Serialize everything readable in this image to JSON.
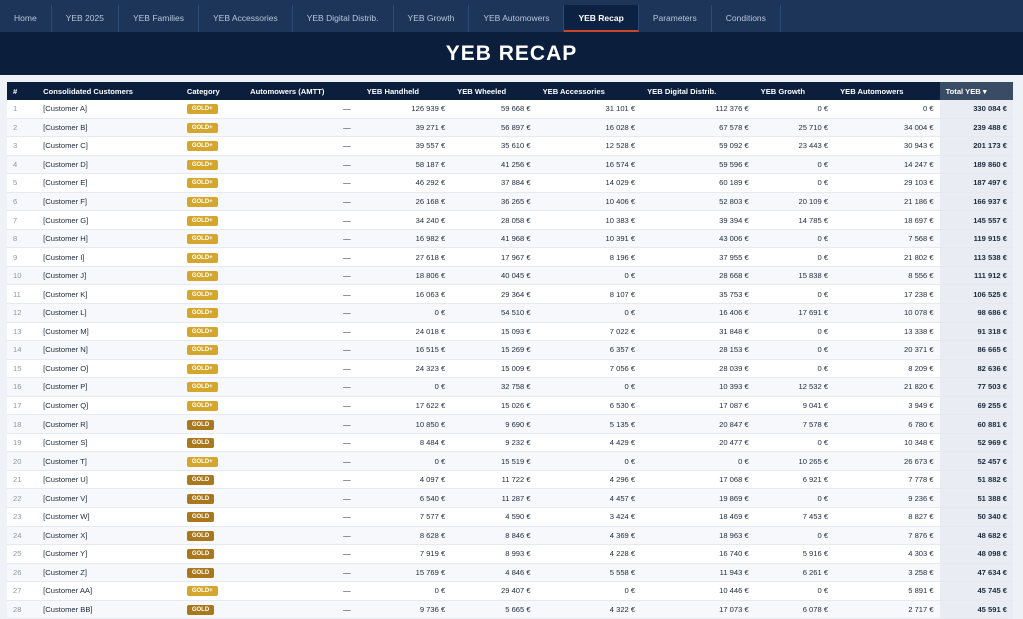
{
  "nav": {
    "tabs": [
      {
        "label": "Home",
        "active": false
      },
      {
        "label": "YEB 2025",
        "active": false
      },
      {
        "label": "YEB Families",
        "active": false
      },
      {
        "label": "YEB Accessories",
        "active": false
      },
      {
        "label": "YEB Digital Distrib.",
        "active": false
      },
      {
        "label": "YEB Growth",
        "active": false
      },
      {
        "label": "YEB Automowers",
        "active": false
      },
      {
        "label": "YEB Recap",
        "active": true
      },
      {
        "label": "Parameters",
        "active": false
      },
      {
        "label": "Conditions",
        "active": false
      }
    ]
  },
  "page": {
    "title": "YEB RECAP"
  },
  "colors": {
    "navy": "#0b1f3d",
    "gold_plus": "#d4a72c",
    "gold": "#a9781d",
    "active_tab_accent": "#c9462b"
  },
  "table": {
    "columns": [
      "#",
      "Consolidated Customers",
      "Category",
      "Automowers (AMTT)",
      "YEB Handheld",
      "YEB Wheeled",
      "YEB Accessories",
      "YEB Digital Distrib.",
      "YEB Growth",
      "YEB Automowers",
      "Total YEB ▾"
    ],
    "rows": [
      {
        "idx": "1",
        "customer": "[Customer A]",
        "category": "GOLD+",
        "amtt": "—",
        "handheld": "126 939 €",
        "wheeled": "59 668 €",
        "accessories": "31 101 €",
        "digital": "112 376 €",
        "growth": "0 €",
        "automowers": "0 €",
        "total": "330 084 €"
      },
      {
        "idx": "2",
        "customer": "[Customer B]",
        "category": "GOLD+",
        "amtt": "—",
        "handheld": "39 271 €",
        "wheeled": "56 897 €",
        "accessories": "16 028 €",
        "digital": "67 578 €",
        "growth": "25 710 €",
        "automowers": "34 004 €",
        "total": "239 488 €"
      },
      {
        "idx": "3",
        "customer": "[Customer C]",
        "category": "GOLD+",
        "amtt": "—",
        "handheld": "39 557 €",
        "wheeled": "35 610 €",
        "accessories": "12 528 €",
        "digital": "59 092 €",
        "growth": "23 443 €",
        "automowers": "30 943 €",
        "total": "201 173 €"
      },
      {
        "idx": "4",
        "customer": "[Customer D]",
        "category": "GOLD+",
        "amtt": "—",
        "handheld": "58 187 €",
        "wheeled": "41 256 €",
        "accessories": "16 574 €",
        "digital": "59 596 €",
        "growth": "0 €",
        "automowers": "14 247 €",
        "total": "189 860 €"
      },
      {
        "idx": "5",
        "customer": "[Customer E]",
        "category": "GOLD+",
        "amtt": "—",
        "handheld": "46 292 €",
        "wheeled": "37 884 €",
        "accessories": "14 029 €",
        "digital": "60 189 €",
        "growth": "0 €",
        "automowers": "29 103 €",
        "total": "187 497 €"
      },
      {
        "idx": "6",
        "customer": "[Customer F]",
        "category": "GOLD+",
        "amtt": "—",
        "handheld": "26 168 €",
        "wheeled": "36 265 €",
        "accessories": "10 406 €",
        "digital": "52 803 €",
        "growth": "20 109 €",
        "automowers": "21 186 €",
        "total": "166 937 €"
      },
      {
        "idx": "7",
        "customer": "[Customer G]",
        "category": "GOLD+",
        "amtt": "—",
        "handheld": "34 240 €",
        "wheeled": "28 058 €",
        "accessories": "10 383 €",
        "digital": "39 394 €",
        "growth": "14 785 €",
        "automowers": "18 697 €",
        "total": "145 557 €"
      },
      {
        "idx": "8",
        "customer": "[Customer H]",
        "category": "GOLD+",
        "amtt": "—",
        "handheld": "16 982 €",
        "wheeled": "41 968 €",
        "accessories": "10 391 €",
        "digital": "43 006 €",
        "growth": "0 €",
        "automowers": "7 568 €",
        "total": "119 915 €"
      },
      {
        "idx": "9",
        "customer": "[Customer I]",
        "category": "GOLD+",
        "amtt": "—",
        "handheld": "27 618 €",
        "wheeled": "17 967 €",
        "accessories": "8 196 €",
        "digital": "37 955 €",
        "growth": "0 €",
        "automowers": "21 802 €",
        "total": "113 538 €"
      },
      {
        "idx": "10",
        "customer": "[Customer J]",
        "category": "GOLD+",
        "amtt": "—",
        "handheld": "18 806 €",
        "wheeled": "40 045 €",
        "accessories": "0 €",
        "digital": "28 668 €",
        "growth": "15 838 €",
        "automowers": "8 556 €",
        "total": "111 912 €"
      },
      {
        "idx": "11",
        "customer": "[Customer K]",
        "category": "GOLD+",
        "amtt": "—",
        "handheld": "16 063 €",
        "wheeled": "29 364 €",
        "accessories": "8 107 €",
        "digital": "35 753 €",
        "growth": "0 €",
        "automowers": "17 238 €",
        "total": "106 525 €"
      },
      {
        "idx": "12",
        "customer": "[Customer L]",
        "category": "GOLD+",
        "amtt": "—",
        "handheld": "0 €",
        "wheeled": "54 510 €",
        "accessories": "0 €",
        "digital": "16 406 €",
        "growth": "17 691 €",
        "automowers": "10 078 €",
        "total": "98 686 €"
      },
      {
        "idx": "13",
        "customer": "[Customer M]",
        "category": "GOLD+",
        "amtt": "—",
        "handheld": "24 018 €",
        "wheeled": "15 093 €",
        "accessories": "7 022 €",
        "digital": "31 848 €",
        "growth": "0 €",
        "automowers": "13 338 €",
        "total": "91 318 €"
      },
      {
        "idx": "14",
        "customer": "[Customer N]",
        "category": "GOLD+",
        "amtt": "—",
        "handheld": "16 515 €",
        "wheeled": "15 269 €",
        "accessories": "6 357 €",
        "digital": "28 153 €",
        "growth": "0 €",
        "automowers": "20 371 €",
        "total": "86 665 €"
      },
      {
        "idx": "15",
        "customer": "[Customer O]",
        "category": "GOLD+",
        "amtt": "—",
        "handheld": "24 323 €",
        "wheeled": "15 009 €",
        "accessories": "7 056 €",
        "digital": "28 039 €",
        "growth": "0 €",
        "automowers": "8 209 €",
        "total": "82 636 €"
      },
      {
        "idx": "16",
        "customer": "[Customer P]",
        "category": "GOLD+",
        "amtt": "—",
        "handheld": "0 €",
        "wheeled": "32 758 €",
        "accessories": "0 €",
        "digital": "10 393 €",
        "growth": "12 532 €",
        "automowers": "21 820 €",
        "total": "77 503 €"
      },
      {
        "idx": "17",
        "customer": "[Customer Q]",
        "category": "GOLD+",
        "amtt": "—",
        "handheld": "17 622 €",
        "wheeled": "15 026 €",
        "accessories": "6 530 €",
        "digital": "17 087 €",
        "growth": "9 041 €",
        "automowers": "3 949 €",
        "total": "69 255 €"
      },
      {
        "idx": "18",
        "customer": "[Customer R]",
        "category": "GOLD",
        "amtt": "—",
        "handheld": "10 850 €",
        "wheeled": "9 690 €",
        "accessories": "5 135 €",
        "digital": "20 847 €",
        "growth": "7 578 €",
        "automowers": "6 780 €",
        "total": "60 881 €"
      },
      {
        "idx": "19",
        "customer": "[Customer S]",
        "category": "GOLD",
        "amtt": "—",
        "handheld": "8 484 €",
        "wheeled": "9 232 €",
        "accessories": "4 429 €",
        "digital": "20 477 €",
        "growth": "0 €",
        "automowers": "10 348 €",
        "total": "52 969 €"
      },
      {
        "idx": "20",
        "customer": "[Customer T]",
        "category": "GOLD+",
        "amtt": "—",
        "handheld": "0 €",
        "wheeled": "15 519 €",
        "accessories": "0 €",
        "digital": "0 €",
        "growth": "10 265 €",
        "automowers": "26 673 €",
        "total": "52 457 €"
      },
      {
        "idx": "21",
        "customer": "[Customer U]",
        "category": "GOLD",
        "amtt": "—",
        "handheld": "4 097 €",
        "wheeled": "11 722 €",
        "accessories": "4 296 €",
        "digital": "17 068 €",
        "growth": "6 921 €",
        "automowers": "7 778 €",
        "total": "51 882 €"
      },
      {
        "idx": "22",
        "customer": "[Customer V]",
        "category": "GOLD",
        "amtt": "—",
        "handheld": "6 540 €",
        "wheeled": "11 287 €",
        "accessories": "4 457 €",
        "digital": "19 869 €",
        "growth": "0 €",
        "automowers": "9 236 €",
        "total": "51 388 €"
      },
      {
        "idx": "23",
        "customer": "[Customer W]",
        "category": "GOLD",
        "amtt": "—",
        "handheld": "7 577 €",
        "wheeled": "4 590 €",
        "accessories": "3 424 €",
        "digital": "18 469 €",
        "growth": "7 453 €",
        "automowers": "8 827 €",
        "total": "50 340 €"
      },
      {
        "idx": "24",
        "customer": "[Customer X]",
        "category": "GOLD",
        "amtt": "—",
        "handheld": "8 628 €",
        "wheeled": "8 846 €",
        "accessories": "4 369 €",
        "digital": "18 963 €",
        "growth": "0 €",
        "automowers": "7 876 €",
        "total": "48 682 €"
      },
      {
        "idx": "25",
        "customer": "[Customer Y]",
        "category": "GOLD",
        "amtt": "—",
        "handheld": "7 919 €",
        "wheeled": "8 993 €",
        "accessories": "4 228 €",
        "digital": "16 740 €",
        "growth": "5 916 €",
        "automowers": "4 303 €",
        "total": "48 098 €"
      },
      {
        "idx": "26",
        "customer": "[Customer Z]",
        "category": "GOLD",
        "amtt": "—",
        "handheld": "15 769 €",
        "wheeled": "4 846 €",
        "accessories": "5 558 €",
        "digital": "11 943 €",
        "growth": "6 261 €",
        "automowers": "3 258 €",
        "total": "47 634 €"
      },
      {
        "idx": "27",
        "customer": "[Customer AA]",
        "category": "GOLD+",
        "amtt": "—",
        "handheld": "0 €",
        "wheeled": "29 407 €",
        "accessories": "0 €",
        "digital": "10 446 €",
        "growth": "0 €",
        "automowers": "5 891 €",
        "total": "45 745 €"
      },
      {
        "idx": "28",
        "customer": "[Customer BB]",
        "category": "GOLD",
        "amtt": "—",
        "handheld": "9 736 €",
        "wheeled": "5 665 €",
        "accessories": "4 322 €",
        "digital": "17 073 €",
        "growth": "6 078 €",
        "automowers": "2 717 €",
        "total": "45 591 €"
      }
    ]
  }
}
